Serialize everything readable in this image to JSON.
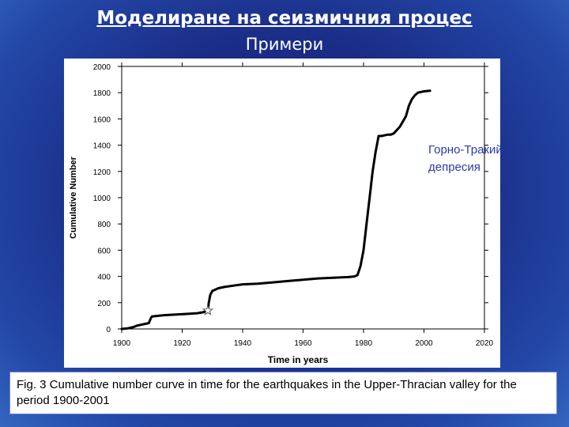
{
  "slide": {
    "title": "Моделиране на сеизмичния процес",
    "subtitle": "Примери"
  },
  "caption": "Fig. 3 Cumulative number curve in time for the earthquakes in the Upper-Thracian valley for the period 1900-2001",
  "chart_data": {
    "type": "line",
    "title": "",
    "xlabel": "Time in years",
    "ylabel": "Cumulative Number",
    "xlim": [
      1900,
      2020
    ],
    "ylim": [
      0,
      2000
    ],
    "x_ticks": [
      1900,
      1920,
      1940,
      1960,
      1980,
      2000,
      2020
    ],
    "y_ticks": [
      0,
      200,
      400,
      600,
      800,
      1000,
      1200,
      1400,
      1600,
      1800,
      2000
    ],
    "grid": false,
    "annotation": {
      "line1": "Горно-Тракийска",
      "line2": "депресия",
      "color": "#2c3aa6"
    },
    "marker": {
      "x": 1928.5,
      "y": 140,
      "shape": "star"
    },
    "series": [
      {
        "color": "#000000",
        "x": [
          1900,
          1902,
          1904,
          1905,
          1907,
          1908,
          1909,
          1909.6,
          1910,
          1912,
          1914,
          1918,
          1922,
          1925,
          1927,
          1928.5,
          1928.8,
          1929.3,
          1930,
          1932,
          1934,
          1937,
          1940,
          1945,
          1950,
          1955,
          1960,
          1965,
          1970,
          1975,
          1977,
          1978,
          1979,
          1980,
          1981,
          1982,
          1983,
          1984,
          1985,
          1986,
          1987,
          1988,
          1989,
          1990,
          1992,
          1994,
          1995,
          1996,
          1997,
          1998,
          2000,
          2002
        ],
        "y": [
          0,
          5,
          15,
          25,
          35,
          40,
          45,
          80,
          95,
          100,
          105,
          110,
          115,
          120,
          128,
          140,
          200,
          260,
          290,
          310,
          320,
          330,
          340,
          345,
          355,
          365,
          375,
          385,
          390,
          395,
          400,
          410,
          480,
          600,
          800,
          1000,
          1200,
          1350,
          1470,
          1470,
          1475,
          1480,
          1480,
          1490,
          1540,
          1620,
          1700,
          1750,
          1780,
          1800,
          1810,
          1815
        ]
      }
    ]
  }
}
